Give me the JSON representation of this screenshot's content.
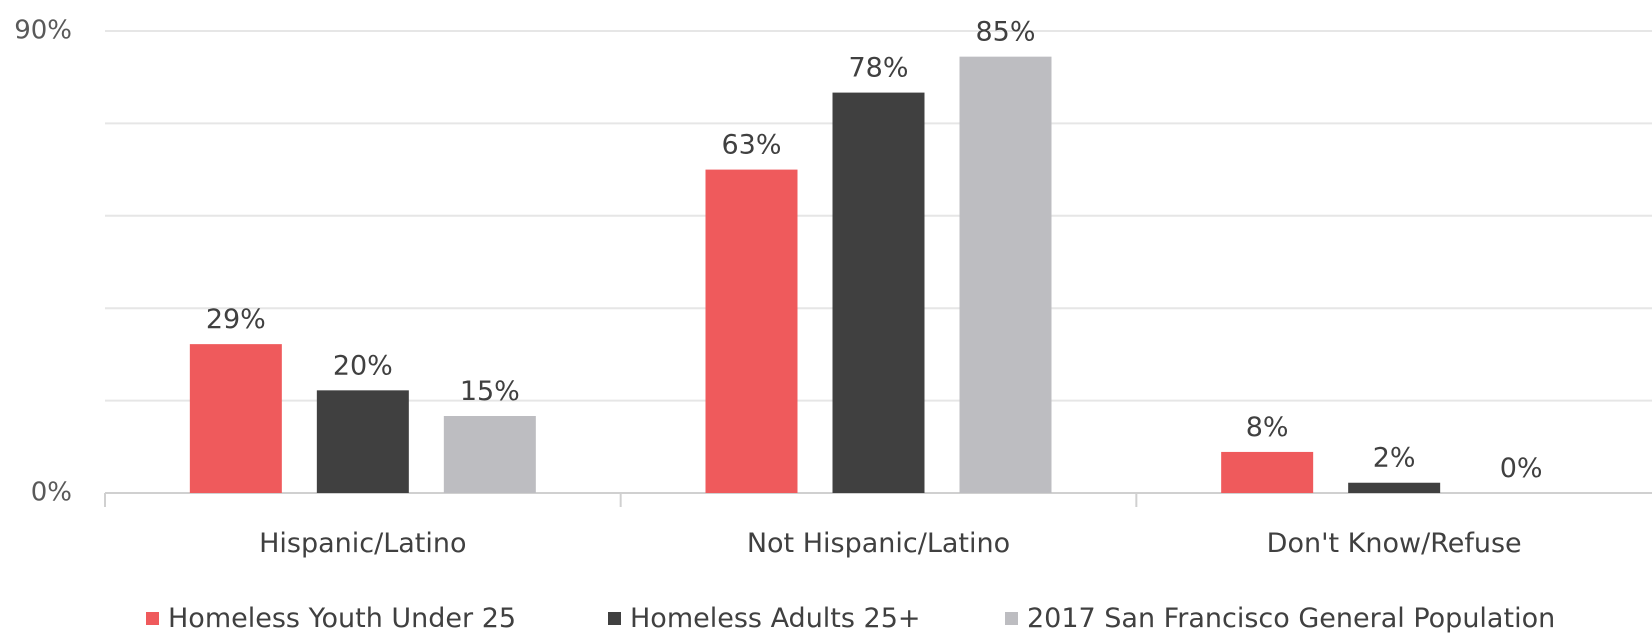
{
  "chart_data": {
    "type": "bar",
    "categories": [
      "Hispanic/Latino",
      "Not Hispanic/Latino",
      "Don't Know/Refuse"
    ],
    "series": [
      {
        "name": "Homeless Youth Under 25",
        "values": [
          29,
          63,
          8
        ],
        "labels": [
          "29%",
          "63%",
          "8%"
        ],
        "color": "#ef5a5c"
      },
      {
        "name": "Homeless Adults 25+",
        "values": [
          20,
          78,
          2
        ],
        "labels": [
          "20%",
          "78%",
          "2%"
        ],
        "color": "#404040"
      },
      {
        "name": "2017 San Francisco General Population",
        "values": [
          15,
          85,
          0
        ],
        "labels": [
          "15%",
          "85%",
          "0%"
        ],
        "color": "#bdbdc1"
      }
    ],
    "ylim": [
      0,
      90
    ],
    "ytick_labels": [
      "0%",
      "90%"
    ],
    "ytick_values": [
      0,
      90
    ],
    "gridlines": [
      18,
      36,
      54,
      72,
      90
    ],
    "grid": true,
    "legend_position": "bottom",
    "title": "",
    "xlabel": "",
    "ylabel": ""
  }
}
